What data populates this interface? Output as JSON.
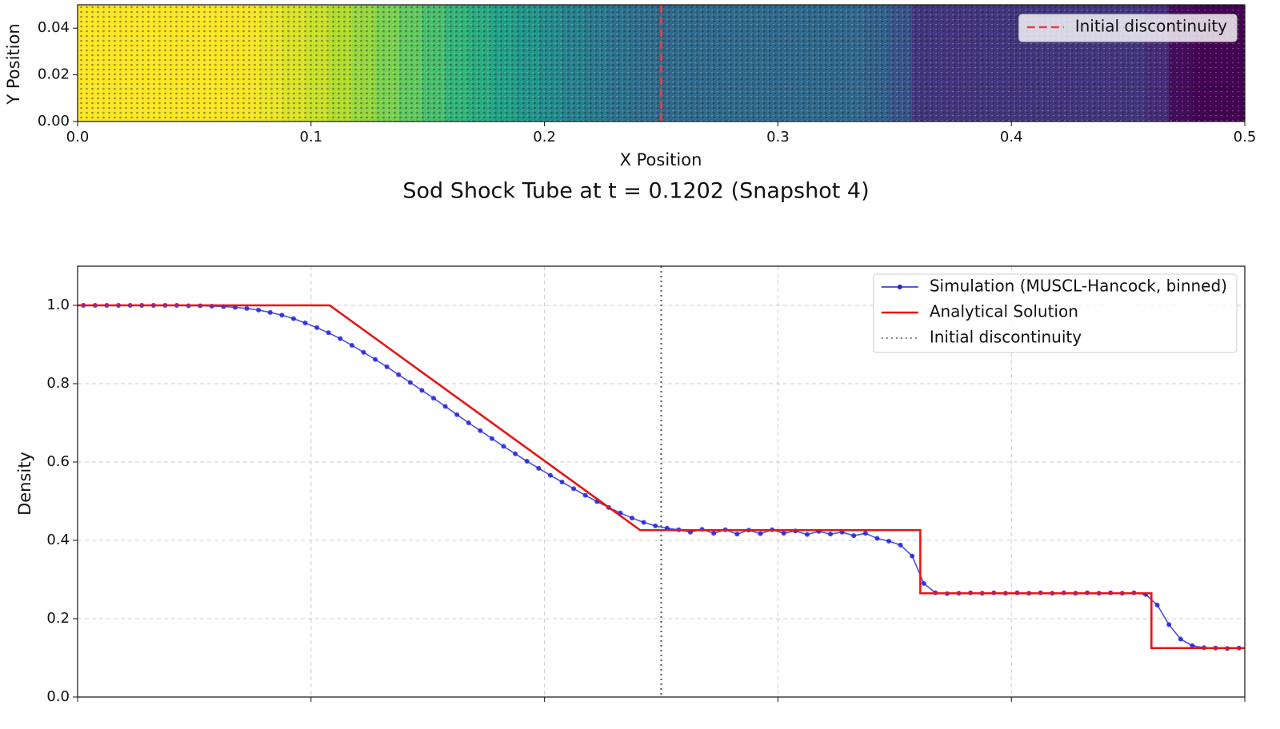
{
  "chart_data": [
    {
      "type": "strip",
      "xlabel": "X Position",
      "ylabel": "Y Position",
      "xlim": [
        0,
        0.5
      ],
      "ylim": [
        0,
        0.05
      ],
      "xticks": [
        {
          "value": 0,
          "label": "0.0"
        },
        0.1,
        0.2,
        0.3,
        0.4,
        0.5
      ],
      "yticks": [
        {
          "value": 0,
          "label": "0.00"
        },
        {
          "value": 0.02,
          "label": "0.02"
        },
        {
          "value": 0.04,
          "label": "0.04"
        }
      ],
      "colormap": "viridis",
      "x": [
        0.0025,
        0.0125,
        0.0225,
        0.0325,
        0.0425,
        0.0525,
        0.0625,
        0.0725,
        0.0825,
        0.0925,
        0.1025,
        0.1125,
        0.1225,
        0.1325,
        0.1425,
        0.1525,
        0.1625,
        0.1725,
        0.1825,
        0.1925,
        0.2025,
        0.2125,
        0.2225,
        0.2325,
        0.2425,
        0.2525,
        0.2625,
        0.2725,
        0.2825,
        0.2925,
        0.3025,
        0.3125,
        0.3225,
        0.3325,
        0.3425,
        0.3525,
        0.3625,
        0.3725,
        0.3825,
        0.3925,
        0.4025,
        0.4125,
        0.4225,
        0.4325,
        0.4425,
        0.4525,
        0.4625,
        0.4725,
        0.4825,
        0.4925
      ],
      "values": [
        1.0,
        1.0,
        1.0,
        1.0,
        1.0,
        0.999,
        0.997,
        0.992,
        0.975,
        0.955,
        0.93,
        0.898,
        0.862,
        0.823,
        0.783,
        0.742,
        0.7,
        0.66,
        0.621,
        0.584,
        0.549,
        0.515,
        0.484,
        0.457,
        0.437,
        0.427,
        0.428,
        0.427,
        0.426,
        0.427,
        0.424,
        0.423,
        0.421,
        0.418,
        0.398,
        0.36,
        0.266,
        0.265,
        0.265,
        0.266,
        0.265,
        0.266,
        0.265,
        0.266,
        0.265,
        0.266,
        0.235,
        0.148,
        0.126,
        0.124
      ],
      "vlines": [
        {
          "name": "Initial discontinuity",
          "x": 0.25,
          "color": "#f03c3c",
          "style": "dashed"
        }
      ],
      "legend": "upper right",
      "grid": false
    },
    {
      "type": "line",
      "title": "Sod Shock Tube at t = 0.1202 (Snapshot 4)",
      "ylabel": "Density",
      "xlim": [
        0,
        0.5
      ],
      "ylim": [
        0,
        1.1
      ],
      "xticks": [
        0,
        0.1,
        0.2,
        0.3,
        0.4,
        0.5
      ],
      "yticks": [
        {
          "value": 0,
          "label": "0.0"
        },
        0.2,
        0.4,
        0.6,
        0.8,
        {
          "value": 1,
          "label": "1.0"
        }
      ],
      "series": [
        {
          "name": "Simulation (MUSCL-Hancock, binned)",
          "color": "#2222dd",
          "marker": "o",
          "x": [
            0.0025,
            0.0075,
            0.0125,
            0.0175,
            0.0225,
            0.0275,
            0.0325,
            0.0375,
            0.0425,
            0.0475,
            0.0525,
            0.0575,
            0.0625,
            0.0675,
            0.0725,
            0.0775,
            0.0825,
            0.0875,
            0.0925,
            0.0975,
            0.1025,
            0.1075,
            0.1125,
            0.1175,
            0.1225,
            0.1275,
            0.1325,
            0.1375,
            0.1425,
            0.1475,
            0.1525,
            0.1575,
            0.1625,
            0.1675,
            0.1725,
            0.1775,
            0.1825,
            0.1875,
            0.1925,
            0.1975,
            0.2025,
            0.2075,
            0.2125,
            0.2175,
            0.2225,
            0.2275,
            0.2325,
            0.2375,
            0.2425,
            0.2475,
            0.2525,
            0.2575,
            0.2625,
            0.2675,
            0.2725,
            0.2775,
            0.2825,
            0.2875,
            0.2925,
            0.2975,
            0.3025,
            0.3075,
            0.3125,
            0.3175,
            0.3225,
            0.3275,
            0.3325,
            0.3375,
            0.3425,
            0.3475,
            0.3525,
            0.3575,
            0.3625,
            0.3675,
            0.3725,
            0.3775,
            0.3825,
            0.3875,
            0.3925,
            0.3975,
            0.4025,
            0.4075,
            0.4125,
            0.4175,
            0.4225,
            0.4275,
            0.4325,
            0.4375,
            0.4425,
            0.4475,
            0.4525,
            0.4575,
            0.4625,
            0.4675,
            0.4725,
            0.4775,
            0.4825,
            0.4875,
            0.4925,
            0.4975
          ],
          "values": [
            1.0,
            1.0,
            1.0,
            1.0,
            1.0,
            1.0,
            1.0,
            1.0,
            1.0,
            0.999,
            0.999,
            0.998,
            0.997,
            0.995,
            0.992,
            0.988,
            0.982,
            0.975,
            0.966,
            0.955,
            0.943,
            0.93,
            0.915,
            0.898,
            0.88,
            0.862,
            0.843,
            0.823,
            0.803,
            0.783,
            0.763,
            0.742,
            0.721,
            0.7,
            0.68,
            0.66,
            0.64,
            0.621,
            0.602,
            0.584,
            0.566,
            0.549,
            0.532,
            0.515,
            0.499,
            0.484,
            0.47,
            0.457,
            0.446,
            0.437,
            0.431,
            0.427,
            0.421,
            0.428,
            0.418,
            0.427,
            0.416,
            0.426,
            0.417,
            0.427,
            0.418,
            0.424,
            0.415,
            0.423,
            0.416,
            0.421,
            0.412,
            0.418,
            0.405,
            0.398,
            0.388,
            0.36,
            0.29,
            0.266,
            0.264,
            0.265,
            0.266,
            0.265,
            0.266,
            0.265,
            0.266,
            0.265,
            0.266,
            0.265,
            0.266,
            0.265,
            0.266,
            0.265,
            0.266,
            0.265,
            0.266,
            0.262,
            0.235,
            0.185,
            0.148,
            0.131,
            0.126,
            0.125,
            0.124,
            0.125
          ]
        },
        {
          "name": "Analytical Solution",
          "color": "#e81515",
          "x": [
            0,
            0.108,
            0.241,
            0.361,
            0.361,
            0.46,
            0.46,
            0.5
          ],
          "values": [
            1.0,
            1.0,
            0.426,
            0.426,
            0.265,
            0.265,
            0.125,
            0.125
          ]
        }
      ],
      "vlines": [
        {
          "name": "Initial discontinuity",
          "x": 0.25,
          "color": "#555555",
          "style": "dotted"
        }
      ],
      "legend": "upper right",
      "grid": true
    }
  ]
}
